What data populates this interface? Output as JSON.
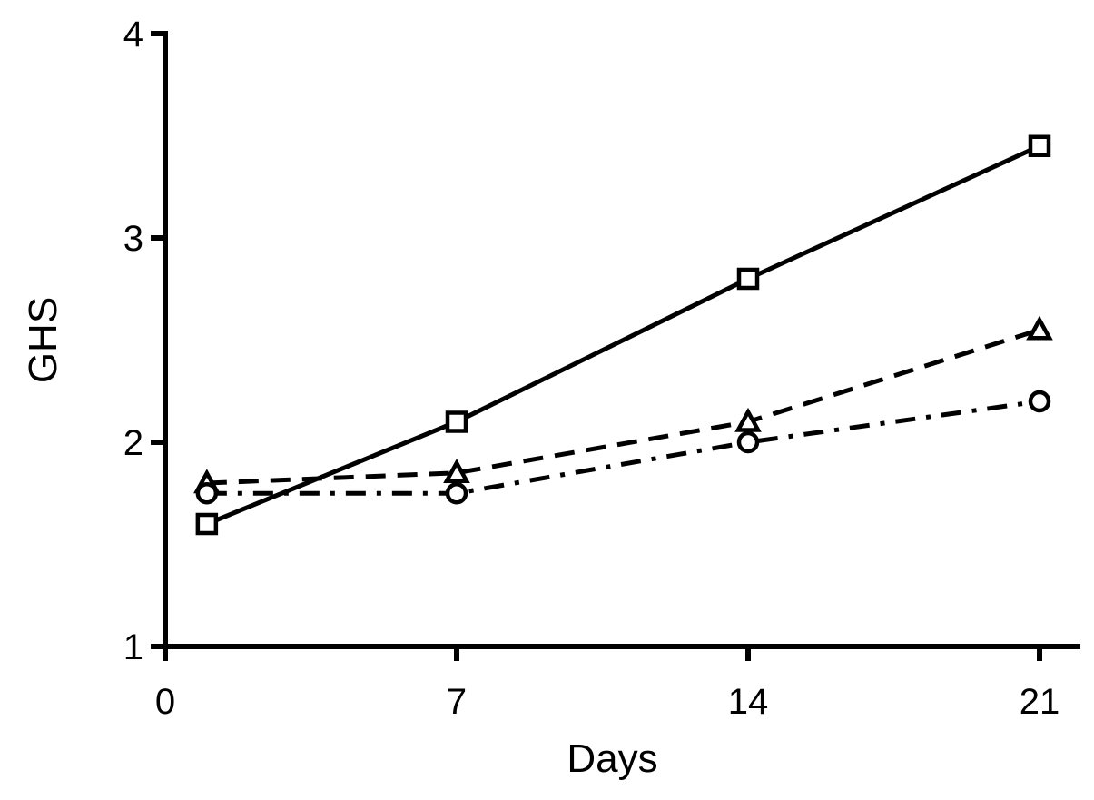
{
  "chart_data": {
    "type": "line",
    "title": "",
    "xlabel": "Days",
    "ylabel": "GHS",
    "xlim": [
      0,
      21
    ],
    "ylim": [
      1,
      4
    ],
    "x_ticks": [
      "0",
      "7",
      "14",
      "21"
    ],
    "y_ticks": [
      "1",
      "2",
      "3",
      "4"
    ],
    "grid": false,
    "legend": "none",
    "series": [
      {
        "marker": "square",
        "line_style": "solid",
        "color": "#000000",
        "points": [
          {
            "x": 1,
            "y": 1.6
          },
          {
            "x": 7,
            "y": 2.1
          },
          {
            "x": 14,
            "y": 2.8
          },
          {
            "x": 21,
            "y": 3.45
          }
        ]
      },
      {
        "marker": "triangle",
        "line_style": "dashed",
        "color": "#000000",
        "points": [
          {
            "x": 1,
            "y": 1.8
          },
          {
            "x": 7,
            "y": 1.85
          },
          {
            "x": 14,
            "y": 2.1
          },
          {
            "x": 21,
            "y": 2.55
          }
        ]
      },
      {
        "marker": "circle",
        "line_style": "dash-dot",
        "color": "#000000",
        "points": [
          {
            "x": 1,
            "y": 1.75
          },
          {
            "x": 7,
            "y": 1.75
          },
          {
            "x": 14,
            "y": 2.0
          },
          {
            "x": 21,
            "y": 2.2
          }
        ]
      }
    ]
  }
}
